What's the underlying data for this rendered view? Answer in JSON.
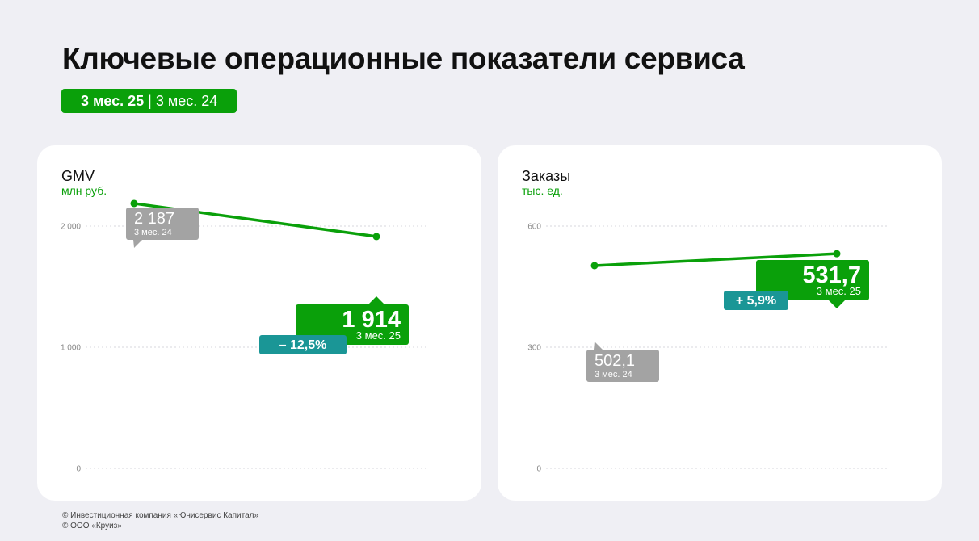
{
  "page": {
    "title": "Ключевые операционные показатели сервиса",
    "period_current": "3 мес. 25",
    "period_sep": " | ",
    "period_previous": "3 мес. 24"
  },
  "footer": {
    "line1": "© Инвестиционная компания «Юнисервис Капитал»",
    "line2": "© ООО «Круиз»"
  },
  "colors": {
    "accent": "#0aa00a",
    "previous": "#a3a3a3",
    "change": "#1a9696",
    "grid": "#d7d7dd"
  },
  "chart_data": [
    {
      "type": "line",
      "title": "GMV",
      "unit": "млн руб.",
      "ylim": [
        0,
        2400
      ],
      "yticks": [
        0,
        1000,
        2000
      ],
      "ytick_labels": [
        "0",
        "1 000",
        "2 000"
      ],
      "grid": true,
      "points": [
        {
          "period": "3 мес. 24",
          "value": 2187,
          "label": "2 187"
        },
        {
          "period": "3 мес. 25",
          "value": 1914,
          "label": "1 914"
        }
      ],
      "change": "– 12,5%"
    },
    {
      "type": "line",
      "title": "Заказы",
      "unit": "тыс. ед.",
      "ylim": [
        0,
        720
      ],
      "yticks": [
        0,
        300,
        600
      ],
      "ytick_labels": [
        "0",
        "300",
        "600"
      ],
      "grid": true,
      "points": [
        {
          "period": "3 мес. 24",
          "value": 502.1,
          "label": "502,1"
        },
        {
          "period": "3 мес. 25",
          "value": 531.7,
          "label": "531,7"
        }
      ],
      "change": "+ 5,9%"
    }
  ]
}
